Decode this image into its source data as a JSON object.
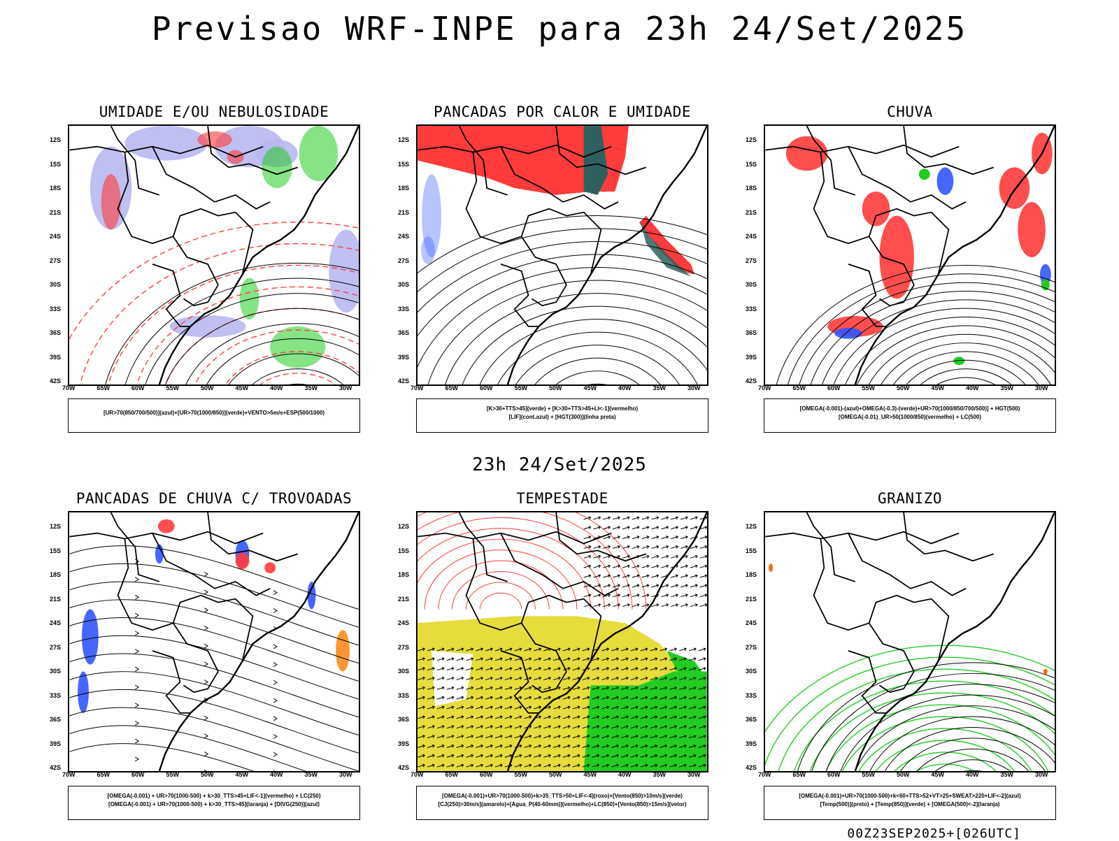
{
  "header": {
    "title": "Previsao WRF-INPE  para 23h 24/Set/2025"
  },
  "mid_label": "23h 24/Set/2025",
  "footer": "00Z23SEP2025+[026UTC]",
  "axes": {
    "lat_labels": [
      "12S",
      "15S",
      "18S",
      "21S",
      "24S",
      "27S",
      "30S",
      "33S",
      "36S",
      "39S",
      "42S"
    ],
    "lon_labels": [
      "70W",
      "65W",
      "60W",
      "55W",
      "50W",
      "45W",
      "40W",
      "35W",
      "30W"
    ]
  },
  "panels": [
    {
      "id": "umidade",
      "title": "UMIDADE E/OU NEBULOSIDADE",
      "legend": [
        "[UR>70(850/700/500)](azul)+[UR>70(1000/850)](verde)+VENTO>5m/s+ESP(500/1000)"
      ]
    },
    {
      "id": "pancadas-calor",
      "title": "PANCADAS POR CALOR E UMIDADE",
      "legend": [
        "[K>30+TTS>45](verde) + [K>30+TTS>45+LI<-1](vermelho)",
        "[LIF](cont.azul) + [HGT(300)](linha preta)"
      ]
    },
    {
      "id": "chuva",
      "title": "CHUVA",
      "legend": [
        "[OMEGA(-0.001)-(azul)+OMEGA(-0.3)-(verde)+UR>70(1000/850/700/500)] + HGT(500)",
        "[OMEGA(-0.01)_UR>50(1000/850)(vermelho) + LC(500)"
      ]
    },
    {
      "id": "trovoadas",
      "title": "PANCADAS DE CHUVA C/ TROVOADAS",
      "legend": [
        "[OMEGA(-0.001) + UR>70(1000-500) + k>30_TTS>45+LIF<-1](vermelho) + LC(250)",
        "[OMEGA(-0.001) + UR>70(1000-500) + k>30_TTS>45](laranja) + [DIVG(250)](azul)"
      ]
    },
    {
      "id": "tempestade",
      "title": "TEMPESTADE",
      "legend": [
        "[OMEGA(-0.001)+UR>70(1000-500)+k>35_TTS>50+LIF<-4](roxo)+[Vento(850)>10m/s](verde)",
        "[CJ(250)>30m/s](amarelo)+[Agua_P(40-60mm)](vermelho)+LC(850)+[Vento(850)>15m/s](vetor)"
      ]
    },
    {
      "id": "granizo",
      "title": "GRANIZO",
      "legend": [
        "[OMEGA(-0.001)+UR>70(1000-500)+k<60+TTS>52+VT>25+SWEAT>220+LIF<-2](azul)",
        "[Temp(500)](preto) + [Temp(850)](verde) + [OMEGA(500)<-2](laranja)"
      ]
    }
  ],
  "colors": {
    "red": "#ff3b3b",
    "green": "#22cc22",
    "blue": "#3355ff",
    "lavender": "#b8b8f0",
    "yellow": "#e6dc3c",
    "teal": "#2f6060"
  }
}
